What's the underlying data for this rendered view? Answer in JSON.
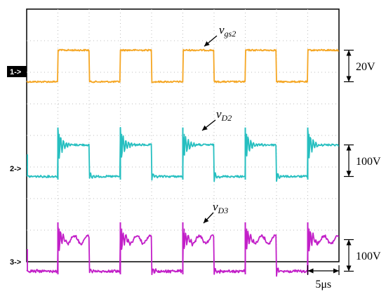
{
  "chart_data": {
    "type": "line",
    "title": "",
    "xlabel": "",
    "ylabel": "",
    "grid": true,
    "x_divisions": 10,
    "y_divisions": 8,
    "period_us": 10,
    "duty": 0.5,
    "series": [
      {
        "name": "v",
        "subscript": "gs2",
        "color": "#f5a623",
        "channel_marker": "1",
        "scale_label": "20V",
        "ref_div": 2.3,
        "amplitude_div": 1.0,
        "x_high_start_div": [
          1.0,
          3.0,
          5.0,
          7.0,
          9.0
        ],
        "x_high_end_div": [
          2.0,
          4.0,
          6.0,
          8.0,
          10.0
        ]
      },
      {
        "name": "v",
        "subscript": "D2",
        "color": "#26bfc0",
        "channel_marker": "2",
        "scale_label": "100V",
        "ref_div": 5.3,
        "amplitude_div": 1.0,
        "x_high_start_div": [
          1.0,
          3.0,
          5.0,
          7.0,
          9.0
        ],
        "x_high_end_div": [
          2.0,
          4.0,
          6.0,
          8.0,
          10.0
        ]
      },
      {
        "name": "v",
        "subscript": "D3",
        "color": "#c21fc8",
        "channel_marker": "3",
        "scale_label": "100V",
        "ref_div": 8.3,
        "amplitude_div": 1.0,
        "x_high_start_div": [
          1.0,
          3.0,
          5.0,
          7.0,
          9.0
        ],
        "x_high_end_div": [
          2.0,
          4.0,
          6.0,
          8.0,
          10.0
        ]
      }
    ],
    "channel_markers": [
      {
        "label": "1->",
        "style": "filled"
      },
      {
        "label": "2->",
        "style": "plain"
      },
      {
        "label": "3->",
        "style": "plain"
      }
    ],
    "time_scale_label": "5μs"
  }
}
